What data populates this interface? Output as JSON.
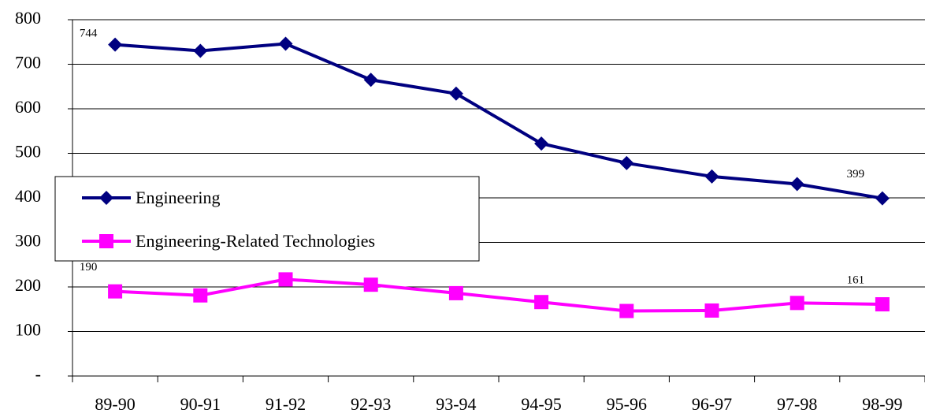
{
  "chart_data": {
    "type": "line",
    "categories": [
      "89-90",
      "90-91",
      "91-92",
      "92-93",
      "93-94",
      "94-95",
      "95-96",
      "96-97",
      "97-98",
      "98-99"
    ],
    "series": [
      {
        "name": "Engineering",
        "color": "#000080",
        "marker": "diamond",
        "values": [
          744,
          730,
          746,
          665,
          634,
          522,
          478,
          448,
          431,
          399
        ],
        "value_labels": [
          "744",
          null,
          null,
          null,
          null,
          null,
          null,
          null,
          null,
          "399"
        ]
      },
      {
        "name": "Engineering-Related Technologies",
        "color": "#ff00ff",
        "marker": "square",
        "values": [
          190,
          181,
          217,
          205,
          186,
          166,
          146,
          147,
          164,
          161
        ],
        "value_labels": [
          "190",
          null,
          null,
          null,
          null,
          null,
          null,
          null,
          null,
          "161"
        ]
      }
    ],
    "ylim": [
      0,
      800
    ],
    "yticks": [
      {
        "value": 0,
        "label": "-"
      },
      100,
      200,
      300,
      400,
      500,
      600,
      700,
      800
    ],
    "grid": true
  }
}
